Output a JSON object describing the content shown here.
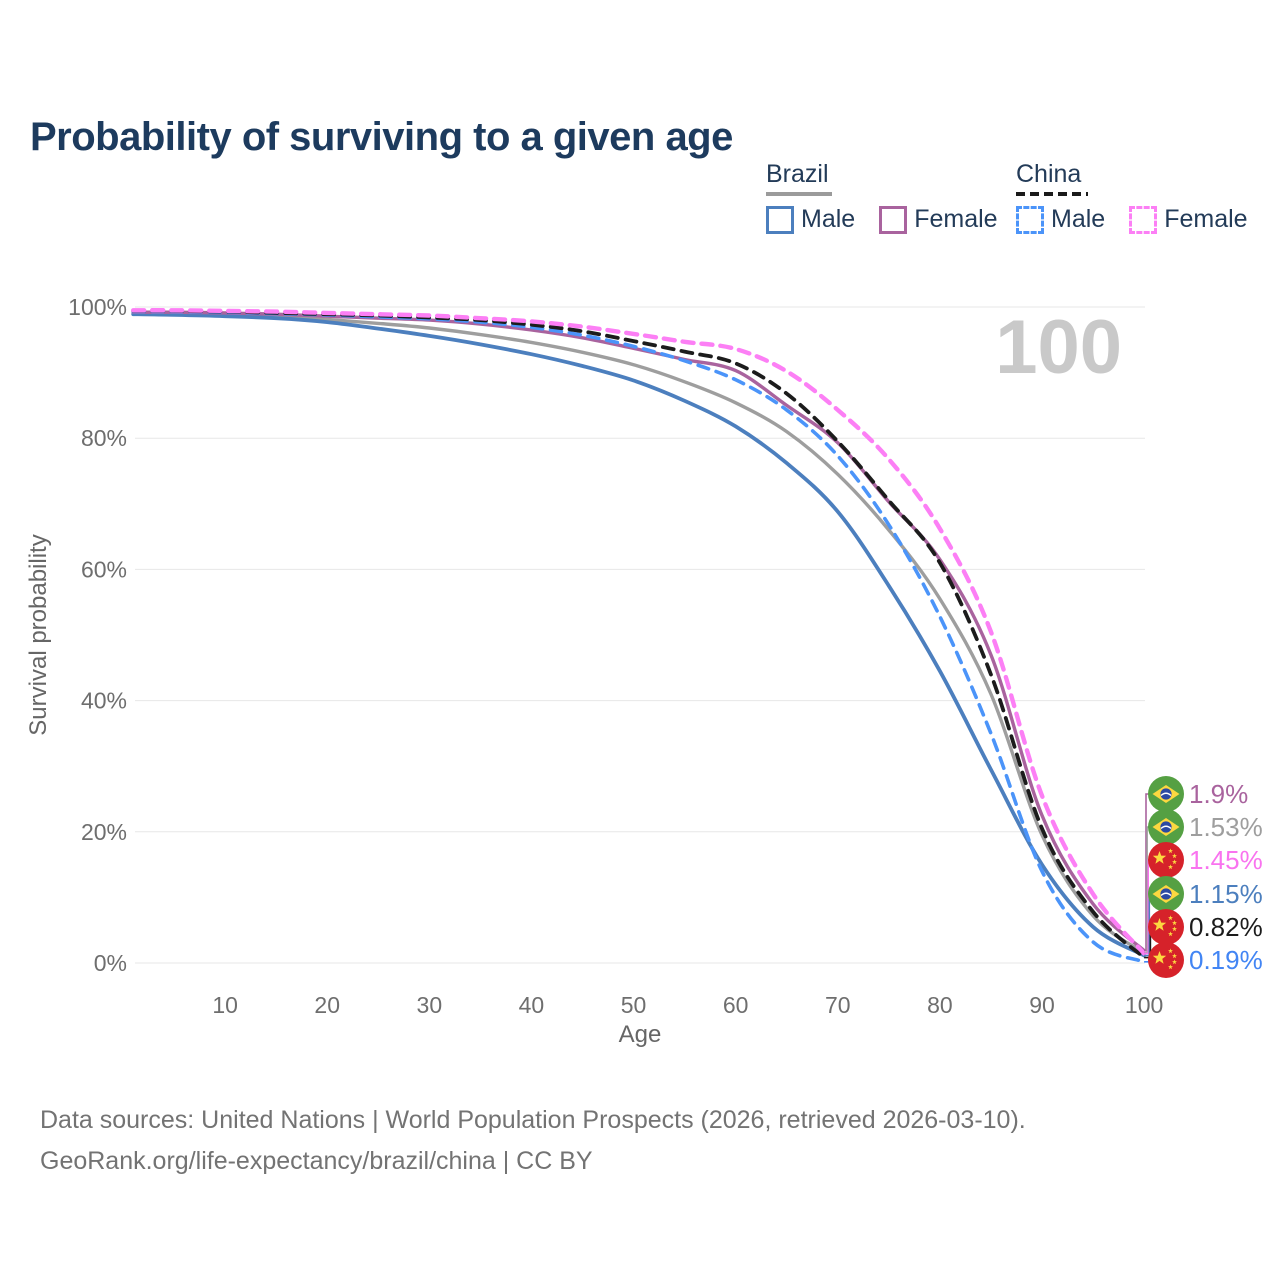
{
  "title": "Probability of surviving to a given age",
  "watermark": "100",
  "legend": {
    "groups": [
      {
        "name": "Brazil",
        "line_style": "solid",
        "underline_color": "#9b9b9b",
        "items": [
          {
            "label": "Male",
            "color": "#4c7fbe",
            "dashed": false
          },
          {
            "label": "Female",
            "color": "#a9639e",
            "dashed": false
          }
        ]
      },
      {
        "name": "China",
        "line_style": "dashed",
        "underline_color": "#1a1a1a",
        "items": [
          {
            "label": "Male",
            "color": "#4b94f9",
            "dashed": true
          },
          {
            "label": "Female",
            "color": "#fc7ff5",
            "dashed": true
          }
        ]
      }
    ]
  },
  "chart_data": {
    "type": "line",
    "title": "Probability of surviving to a given age",
    "xlabel": "Age",
    "ylabel": "Survival probability",
    "xlim": [
      1,
      100
    ],
    "ylim": [
      0,
      100
    ],
    "grid": "horizontal",
    "xticks": [
      10,
      20,
      30,
      40,
      50,
      60,
      70,
      80,
      90,
      100
    ],
    "yticks": [
      {
        "value": 100,
        "label": "100%"
      },
      {
        "value": 80,
        "label": "80%"
      },
      {
        "value": 60,
        "label": "60%"
      },
      {
        "value": 40,
        "label": "40%"
      },
      {
        "value": 20,
        "label": "20%"
      },
      {
        "value": 0,
        "label": "0%"
      }
    ],
    "x": [
      1,
      5,
      10,
      15,
      20,
      25,
      30,
      35,
      40,
      45,
      50,
      55,
      60,
      65,
      70,
      75,
      80,
      85,
      90,
      95,
      100
    ],
    "series": [
      {
        "name": "Brazil Total",
        "color": "#9e9e9e",
        "dashed": false,
        "width": 3.4,
        "values": [
          99.1,
          99.0,
          98.9,
          98.6,
          98.1,
          97.5,
          96.8,
          95.8,
          94.6,
          93.1,
          91.2,
          88.6,
          85.4,
          81.0,
          74.5,
          66.0,
          55.5,
          41.0,
          19.5,
          7.2,
          1.53
        ]
      },
      {
        "name": "Brazil Male",
        "color": "#4c7fbe",
        "dashed": false,
        "width": 3.8,
        "values": [
          98.9,
          98.8,
          98.6,
          98.3,
          97.7,
          96.7,
          95.6,
          94.3,
          92.8,
          91.0,
          88.8,
          85.7,
          81.8,
          76.2,
          68.8,
          57.5,
          44.5,
          29.5,
          15.0,
          5.5,
          1.15
        ]
      },
      {
        "name": "Brazil Female",
        "color": "#a9639e",
        "dashed": false,
        "width": 3.4,
        "values": [
          99.2,
          99.2,
          99.1,
          98.9,
          98.6,
          98.3,
          98.0,
          97.4,
          96.5,
          95.3,
          93.7,
          92.0,
          90.3,
          85.0,
          79.3,
          70.3,
          61.5,
          47.0,
          22.5,
          9.0,
          1.9
        ]
      },
      {
        "name": "China Male",
        "color": "#4b94f9",
        "dashed": true,
        "width": 3.6,
        "values": [
          99.3,
          99.3,
          99.2,
          99.0,
          98.8,
          98.5,
          98.2,
          97.7,
          96.9,
          95.7,
          94.0,
          91.8,
          88.9,
          84.3,
          77.3,
          66.8,
          52.8,
          35.0,
          14.0,
          3.2,
          0.19
        ]
      },
      {
        "name": "China Total",
        "color": "#1c1c1c",
        "dashed": true,
        "width": 3.8,
        "values": [
          99.4,
          99.4,
          99.3,
          99.1,
          98.9,
          98.7,
          98.4,
          98.0,
          97.3,
          96.3,
          94.8,
          93.2,
          91.4,
          86.8,
          79.5,
          70.5,
          61.0,
          44.0,
          20.5,
          7.8,
          0.82
        ]
      },
      {
        "name": "China Female",
        "color": "#fc7ff5",
        "dashed": true,
        "width": 4.4,
        "values": [
          99.5,
          99.5,
          99.4,
          99.3,
          99.1,
          98.9,
          98.7,
          98.3,
          97.8,
          97.0,
          95.9,
          94.7,
          93.6,
          90.2,
          84.3,
          76.8,
          66.2,
          50.5,
          25.5,
          10.5,
          1.45
        ]
      }
    ],
    "end_labels": [
      {
        "text": "1.9%",
        "value": 1.9,
        "series": "Brazil Female",
        "flag": "brazil-flag-icon",
        "color": "#a9639e"
      },
      {
        "text": "1.53%",
        "value": 1.53,
        "series": "Brazil Total",
        "flag": "brazil-flag-icon",
        "color": "#9e9e9e"
      },
      {
        "text": "1.45%",
        "value": 1.45,
        "series": "China Female",
        "flag": "china-flag-icon",
        "color": "#f973ef"
      },
      {
        "text": "1.15%",
        "value": 1.15,
        "series": "Brazil Male",
        "flag": "brazil-flag-icon",
        "color": "#4c7fbe"
      },
      {
        "text": "0.82%",
        "value": 0.82,
        "series": "China Total",
        "flag": "china-flag-icon",
        "color": "#1c1c1c"
      },
      {
        "text": "0.19%",
        "value": 0.19,
        "series": "China Male",
        "flag": "china-flag-icon",
        "color": "#4285f4"
      }
    ],
    "colors": {
      "grid": "#e7e7e7",
      "tick_text": "#6e6e6e",
      "watermark": "#c9c9c9",
      "flag_brazil_green": "#55a043",
      "flag_brazil_yellow": "#fcd840",
      "flag_brazil_blue": "#2b49a3",
      "flag_china_red": "#d6222a",
      "flag_china_yellow": "#fcd840"
    }
  },
  "footer": {
    "line1": "Data sources: United Nations | World Population Prospects (2026, retrieved 2026-03-10).",
    "line2": "GeoRank.org/life-expectancy/brazil/china | CC BY"
  }
}
